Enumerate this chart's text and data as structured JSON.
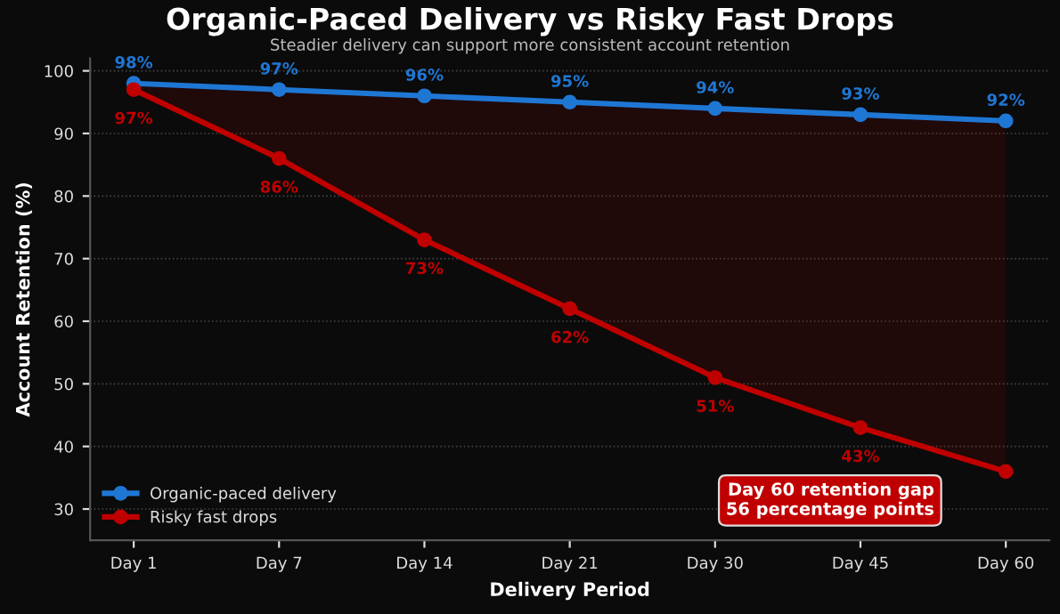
{
  "chart_data": {
    "type": "line",
    "title": "Organic-Paced Delivery vs Risky Fast Drops",
    "subtitle": "Steadier delivery can support more consistent account retention",
    "xlabel": "Delivery Period",
    "ylabel": "Account Retention (%)",
    "categories": [
      "Day 1",
      "Day 7",
      "Day 14",
      "Day 21",
      "Day 30",
      "Day 45",
      "Day 60"
    ],
    "series": [
      {
        "name": "Organic-paced delivery",
        "color": "#1f77d4",
        "values": [
          98,
          97,
          96,
          95,
          94,
          93,
          92
        ],
        "value_labels": [
          "98%",
          "97%",
          "96%",
          "95%",
          "94%",
          "93%",
          "92%"
        ]
      },
      {
        "name": "Risky fast drops",
        "color": "#c00000",
        "values": [
          97,
          86,
          73,
          62,
          51,
          43,
          36
        ],
        "value_labels": [
          "97%",
          "86%",
          "73%",
          "62%",
          "51%",
          "43%",
          null
        ],
        "lower": [
          97,
          86,
          73,
          62,
          51,
          43,
          36
        ],
        "upper": [
          98,
          97,
          96,
          95,
          94,
          93,
          92
        ]
      }
    ],
    "ylim": [
      25,
      102
    ],
    "yticks": [
      30,
      40,
      50,
      60,
      70,
      80,
      90,
      100
    ],
    "grid": "y",
    "legend": "bottom left",
    "marker": "circle",
    "line_style": "solid",
    "annotations": [
      "Day 60 retention gap\n56 percentage points"
    ]
  }
}
